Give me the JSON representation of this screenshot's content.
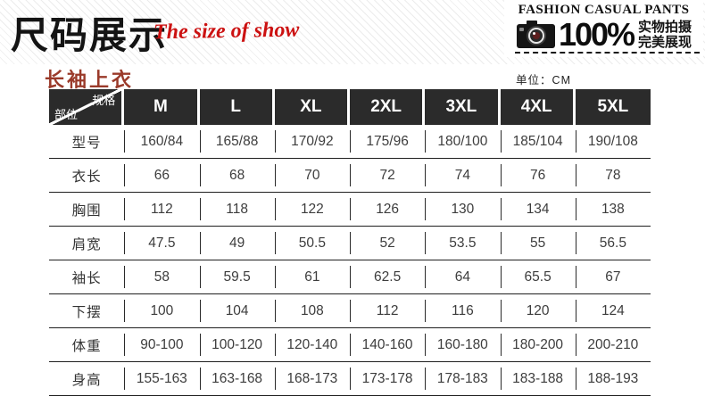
{
  "header": {
    "title": "尺码展示",
    "subtitle": "The size of show",
    "badge": {
      "line1": "FASHION CASUAL PANTS",
      "percent": "100%",
      "tagline_line1": "实物拍摄",
      "tagline_line2": "完美展现"
    }
  },
  "section": {
    "title": "长袖上衣",
    "unit_label": "单位：CM"
  },
  "table": {
    "corner": {
      "top_right": "规格",
      "bottom_left": "部位"
    },
    "columns": [
      "M",
      "L",
      "XL",
      "2XL",
      "3XL",
      "4XL",
      "5XL"
    ],
    "rows": [
      {
        "label": "型号",
        "values": [
          "160/84",
          "165/88",
          "170/92",
          "175/96",
          "180/100",
          "185/104",
          "190/108"
        ]
      },
      {
        "label": "衣长",
        "values": [
          "66",
          "68",
          "70",
          "72",
          "74",
          "76",
          "78"
        ]
      },
      {
        "label": "胸围",
        "values": [
          "112",
          "118",
          "122",
          "126",
          "130",
          "134",
          "138"
        ]
      },
      {
        "label": "肩宽",
        "values": [
          "47.5",
          "49",
          "50.5",
          "52",
          "53.5",
          "55",
          "56.5"
        ]
      },
      {
        "label": "袖长",
        "values": [
          "58",
          "59.5",
          "61",
          "62.5",
          "64",
          "65.5",
          "67"
        ]
      },
      {
        "label": "下摆",
        "values": [
          "100",
          "104",
          "108",
          "112",
          "116",
          "120",
          "124"
        ]
      },
      {
        "label": "体重",
        "values": [
          "90-100",
          "100-120",
          "120-140",
          "140-160",
          "160-180",
          "180-200",
          "200-210"
        ]
      },
      {
        "label": "身高",
        "values": [
          "155-163",
          "163-168",
          "168-173",
          "173-178",
          "178-183",
          "183-188",
          "188-193"
        ]
      }
    ]
  },
  "colors": {
    "accent_red": "#cc1111",
    "section_title_red": "#9a3a2a",
    "header_cell_bg": "#2b2b2b"
  }
}
